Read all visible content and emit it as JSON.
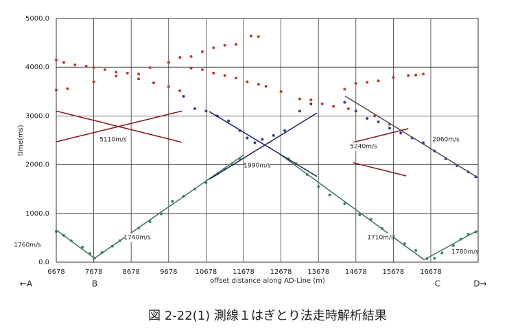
{
  "chart_data": {
    "type": "scatter",
    "caption": "図 2-22(1) 測線１はぎとり法走時解析結果",
    "x_label": "offset distance along AD-Line (m)",
    "y_label": "time(ms)",
    "xlim": [
      6678,
      17942
    ],
    "ylim": [
      0,
      5000
    ],
    "xticks": [
      6678,
      7678,
      8678,
      9678,
      10678,
      11678,
      12678,
      13678,
      14678,
      15678,
      16678
    ],
    "yticks": [
      {
        "value": 0,
        "label": "0.0"
      },
      {
        "value": 1000,
        "label": "1000.0"
      },
      {
        "value": 2000,
        "label": "2000.0"
      },
      {
        "value": 3000,
        "label": "3000.0"
      },
      {
        "value": 4000,
        "label": "4000.0"
      },
      {
        "value": 5000,
        "label": "5000.0"
      }
    ],
    "grid": true,
    "series": [
      {
        "color": "#c0392b",
        "mode": "markers",
        "x": [
          6678,
          6878,
          7178,
          7478,
          7678,
          7978,
          8278,
          8578,
          8878,
          9178,
          9678,
          9978,
          10278,
          10578,
          10878,
          11178,
          11478,
          11878,
          12078
        ],
        "values": [
          4150,
          4100,
          4050,
          4020,
          3990,
          3950,
          3900,
          3880,
          3860,
          3990,
          4100,
          4200,
          4220,
          4320,
          4400,
          4450,
          4470,
          4640,
          4630
        ]
      },
      {
        "color": "#c0392b",
        "mode": "markers",
        "x": [
          6678,
          6978,
          7678,
          8278,
          8878,
          9278,
          9678,
          9978,
          10278,
          10578,
          10878,
          11178,
          11478,
          11778,
          12078,
          12278,
          12678,
          13178,
          13478,
          13778,
          14078,
          14378,
          14478,
          14678,
          14978,
          15178,
          15278,
          15578,
          15678,
          16078,
          16278,
          16478
        ],
        "values": [
          3530,
          3560,
          3700,
          3820,
          3760,
          3680,
          3600,
          3520,
          3980,
          3950,
          3880,
          3830,
          3780,
          3700,
          3650,
          3610,
          3500,
          3350,
          3330,
          3250,
          3200,
          3550,
          3150,
          3670,
          3690,
          3000,
          3720,
          2830,
          3790,
          3830,
          3840,
          3860
        ]
      },
      {
        "color": "#2c3e9c",
        "mode": "markers",
        "x": [
          10078,
          10378,
          10678,
          10978,
          11278,
          11578,
          11778,
          11978,
          12178,
          12478,
          12778,
          13178,
          13478,
          14378,
          14678,
          14978,
          15278,
          15578,
          15878,
          16178,
          16478,
          16778,
          17078,
          17378,
          17678,
          17878
        ],
        "values": [
          3400,
          3150,
          3100,
          3000,
          2900,
          2700,
          2550,
          2450,
          2520,
          2600,
          2700,
          3100,
          3250,
          3280,
          3100,
          2950,
          2880,
          2750,
          2650,
          2550,
          2450,
          2280,
          2120,
          1980,
          1850,
          1750
        ]
      },
      {
        "color": "#2e8b57",
        "mode": "markers",
        "x": [
          6678,
          6878,
          7078,
          7378,
          7578,
          7700,
          7900,
          8178,
          8378,
          8578,
          8878,
          9178,
          9478,
          9778,
          10078,
          10378,
          10678,
          10978,
          11178,
          11378,
          11578,
          12878,
          13078,
          13378,
          13678,
          13978,
          14378,
          14778,
          15078,
          15378,
          15678,
          15978,
          16278,
          16578,
          16778,
          16978,
          17278,
          17478,
          17678,
          17878
        ],
        "values": [
          630,
          550,
          440,
          310,
          180,
          80,
          200,
          330,
          440,
          530,
          700,
          830,
          990,
          1250,
          1350,
          1500,
          1630,
          1810,
          1910,
          2000,
          2120,
          2120,
          2020,
          1800,
          1550,
          1380,
          1200,
          970,
          880,
          690,
          540,
          380,
          240,
          70,
          80,
          190,
          340,
          470,
          570,
          620
        ]
      },
      {
        "color": "#4a7a5a",
        "mode": "line",
        "x": [
          6678,
          7700
        ],
        "values": [
          660,
          80
        ]
      },
      {
        "color": "#4a7a5a",
        "mode": "line",
        "x": [
          7700,
          11678
        ],
        "values": [
          80,
          2200
        ]
      },
      {
        "color": "#4a7a5a",
        "mode": "line",
        "x": [
          12678,
          16500
        ],
        "values": [
          2200,
          50
        ]
      },
      {
        "color": "#4a7a5a",
        "mode": "line",
        "x": [
          16500,
          17928
        ],
        "values": [
          50,
          650
        ]
      },
      {
        "color": "#1f2a6b",
        "mode": "line",
        "x": [
          10762,
          13638
        ],
        "values": [
          3090,
          1760
        ]
      },
      {
        "color": "#1f2a6b",
        "mode": "line",
        "x": [
          10762,
          13638
        ],
        "values": [
          1700,
          3060
        ]
      },
      {
        "color": "#555555",
        "mode": "line",
        "x": [
          14388,
          17942
        ],
        "values": [
          3410,
          1730
        ]
      },
      {
        "color": "#8b1a1a",
        "mode": "line",
        "x": [
          6678,
          10030
        ],
        "values": [
          3100,
          2460
        ]
      },
      {
        "color": "#8b1a1a",
        "mode": "line",
        "x": [
          6678,
          10030
        ],
        "values": [
          2470,
          3100
        ]
      },
      {
        "color": "#8b1a1a",
        "mode": "line",
        "x": [
          14610,
          16080
        ],
        "values": [
          2460,
          2740
        ]
      },
      {
        "color": "#8b1a1a",
        "mode": "line",
        "x": [
          14610,
          16020
        ],
        "values": [
          2040,
          1770
        ]
      }
    ],
    "annotations": [
      "5110m/s",
      "1990m/s",
      "5240m/s",
      "2060m/s",
      "1760m/s",
      "1740m/s",
      "1710m/s",
      "1780m/s"
    ],
    "point_labels": [
      "←A",
      "B",
      "C",
      "D→"
    ]
  }
}
